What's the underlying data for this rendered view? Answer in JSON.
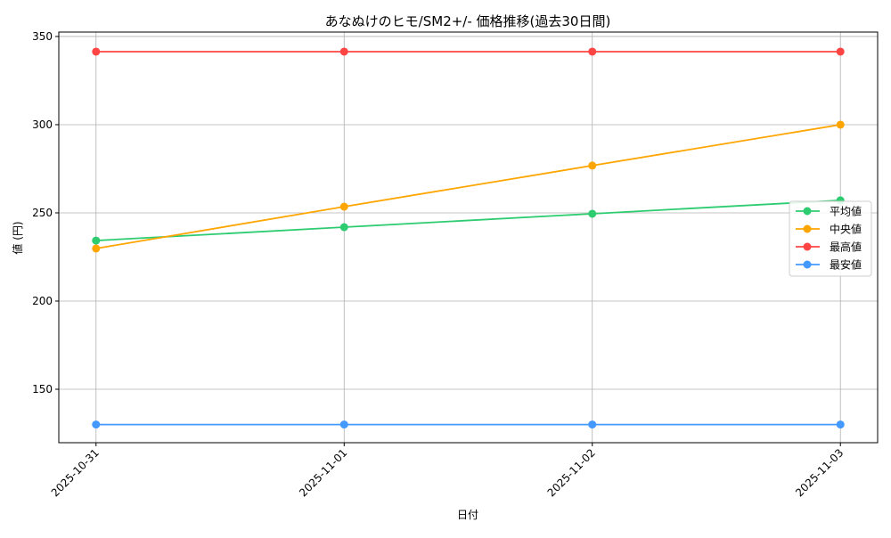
{
  "chart_data": {
    "type": "line",
    "title": "あなぬけのヒモ/SM2+/- 価格推移(過去30日間)",
    "xlabel": "日付",
    "ylabel": "値 (円)",
    "categories": [
      "2025-10-31",
      "2025-11-01",
      "2025-11-02",
      "2025-11-03"
    ],
    "ylim": [
      119.7,
      352.5
    ],
    "yticks": [
      150,
      200,
      250,
      300,
      350
    ],
    "grid": true,
    "legend_position": "center-right",
    "series": [
      {
        "name": "平均値",
        "color": "#2ecc71",
        "values": [
          234.3,
          241.9,
          249.5,
          257.1
        ]
      },
      {
        "name": "中央値",
        "color": "#ffa500",
        "values": [
          229.8,
          253.5,
          276.8,
          300.0
        ]
      },
      {
        "name": "最高値",
        "color": "#ff4444",
        "values": [
          341.4,
          341.4,
          341.4,
          341.4
        ]
      },
      {
        "name": "最安値",
        "color": "#4499ff",
        "values": [
          130.0,
          130.0,
          130.0,
          130.0
        ]
      }
    ]
  }
}
